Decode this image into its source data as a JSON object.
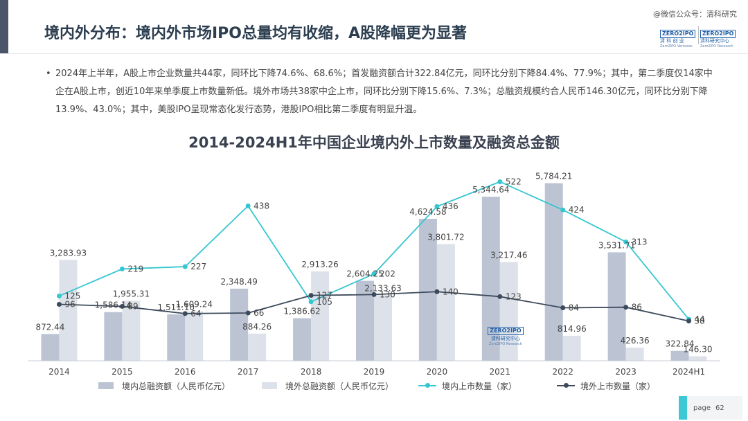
{
  "header": {
    "title": "境内外分布：境内外市场IPO总量均有收缩，A股降幅更为显著",
    "wechat": "@微信公众号：清科研究",
    "logo_left": {
      "box": "ZERO2IPO",
      "line": "清 科 创 业",
      "sub": "Zero2IPO Ventures"
    },
    "logo_right": {
      "box": "ZERO2IPO",
      "line": "清科研究中心",
      "sub": "Zero2IPO Research"
    }
  },
  "summary": {
    "bullet": "•",
    "text": "2024年上半年，A股上市企业数量共44家，同环比下降74.6%、68.6%；首发融资额合计322.84亿元，同环比分别下降84.4%、77.9%；其中，第二季度仅14家中企在A股上市，创近10年来单季度上市数量新低。境外市场共38家中企上市，同环比分别下降15.6%、7.3%；总融资规模约合人民币146.30亿元，同环比分别下降13.9%、43.0%；其中，美股IPO呈现常态化发行态势，港股IPO相比第二季度有明显升温。"
  },
  "watermark": {
    "box": "ZERO2IPO",
    "line": "清科研究中心",
    "sub": "Zero2IPO Research"
  },
  "chart_data": {
    "type": "bar",
    "title": "2014-2024H1年中国企业境内外上市数量及融资总金额",
    "categories": [
      "2014",
      "2015",
      "2016",
      "2017",
      "2018",
      "2019",
      "2020",
      "2021",
      "2022",
      "2023",
      "2024H1"
    ],
    "series": [
      {
        "name": "境内总融资额（人民币亿元）",
        "kind": "bar",
        "color": "#bcc4d4",
        "values": [
          872.44,
          1586.14,
          1511.1,
          2348.49,
          1386.62,
          2604.25,
          4624.58,
          5344.64,
          5784.21,
          3531.71,
          322.84
        ],
        "labels": [
          "872.44",
          "1,586.14",
          "1,511.10",
          "2,348.49",
          "1,386.62",
          "2,604.25",
          "4,624.58",
          "5,344.64",
          "5,784.21",
          "3,531.71",
          "322.84"
        ]
      },
      {
        "name": "境外总融资额（人民币亿元）",
        "kind": "bar",
        "color": "#dde2ea",
        "values": [
          3283.93,
          1955.31,
          1609.24,
          884.26,
          2913.26,
          2133.63,
          3801.72,
          3217.46,
          814.96,
          426.36,
          146.3
        ],
        "labels": [
          "3,283.93",
          "1,955.31",
          "1,609.24",
          "884.26",
          "2,913.26",
          "2,133.63",
          "3,801.72",
          "3,217.46",
          "814.96",
          "426.36",
          "146.30"
        ]
      },
      {
        "name": "境内上市数量（家）",
        "kind": "line",
        "color": "#35c6d1",
        "values": [
          125,
          219,
          227,
          438,
          105,
          202,
          436,
          522,
          424,
          313,
          44
        ],
        "labels": [
          "125",
          "219",
          "227",
          "438",
          "105",
          "202",
          "436",
          "522",
          "424",
          "313",
          "44"
        ]
      },
      {
        "name": "境外上市数量（家）",
        "kind": "line",
        "color": "#3d4a5c",
        "values": [
          96,
          89,
          64,
          66,
          127,
          130,
          140,
          123,
          84,
          86,
          38
        ],
        "labels": [
          "96",
          "89",
          "64",
          "66",
          "127",
          "130",
          "140",
          "123",
          "84",
          "86",
          "38"
        ]
      }
    ],
    "bar_axis": [
      0,
      6000
    ],
    "line_axis": [
      -100,
      540
    ],
    "grid": false,
    "legend_position": "bottom"
  },
  "footer": {
    "page_label": "page",
    "page_number": "62"
  }
}
